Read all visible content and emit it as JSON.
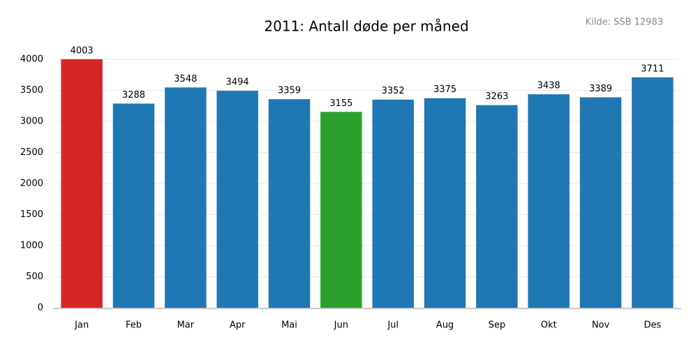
{
  "chart_data": {
    "type": "bar",
    "title": "2011: Antall døde per måned",
    "source": "Kilde: SSB 12983",
    "categories": [
      "Jan",
      "Feb",
      "Mar",
      "Apr",
      "Mai",
      "Jun",
      "Jul",
      "Aug",
      "Sep",
      "Okt",
      "Nov",
      "Des"
    ],
    "values": [
      4003,
      3288,
      3548,
      3494,
      3359,
      3155,
      3352,
      3375,
      3263,
      3438,
      3389,
      3711
    ],
    "colors": [
      "#d62728",
      "#1f77b4",
      "#1f77b4",
      "#1f77b4",
      "#1f77b4",
      "#2ca02c",
      "#1f77b4",
      "#1f77b4",
      "#1f77b4",
      "#1f77b4",
      "#1f77b4",
      "#1f77b4"
    ],
    "ylim": [
      0,
      4203
    ],
    "yticks": [
      0,
      500,
      1000,
      1500,
      2000,
      2500,
      3000,
      3500,
      4000
    ],
    "grid": true
  }
}
